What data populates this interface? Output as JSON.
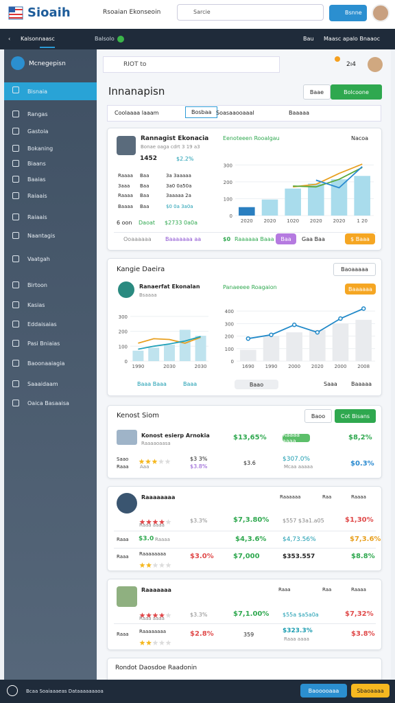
{
  "header": {
    "logo": "Sioaih",
    "tagline": "Rsoaian Ekonseoin",
    "search": "Sarcie",
    "button": "Bsnne"
  },
  "topbar": {
    "back": "Kalsonnaasc",
    "status": "Balsolo",
    "right": [
      "Bau",
      "Maasc apalo Bnaaoc"
    ]
  },
  "sidebar": {
    "title": "Mcnegepisn",
    "items": [
      "Bisnaia",
      "Rangas",
      "Gastoia",
      "Bokaning",
      "Biaans",
      "Baaias",
      "Raiaais",
      "Raiaais",
      "Naantagis",
      "Vaatgah",
      "Birtoon",
      "Kasias",
      "Eddaisaias",
      "Pasi Bniaias",
      "Baoonaaiagia",
      "Saaaidaam",
      "Oaica Basaaisa"
    ]
  },
  "main": {
    "search": "RIOT to",
    "count": "2ı4",
    "title": "Innanapisn",
    "buttons": [
      "Baae",
      "Bolcoone"
    ],
    "tabs": [
      "Coolaaaa laaam",
      "Bosbaa",
      "Soasaaooaaal",
      "Baaaaa"
    ]
  },
  "card1": {
    "name": "Rannagist Ekonacia",
    "sub": "Bonae oaga cdrt 3 19 a3",
    "stat_head": [
      "1452",
      "$2.2%"
    ],
    "rows": [
      [
        "Raaaa",
        "Baa",
        "3a 3aaaaa"
      ],
      [
        "3aaa",
        "Baa",
        "3a0 0a50a"
      ],
      [
        "Raaaa",
        "Baa",
        "3aaaaa 2a"
      ],
      [
        "Baaaa",
        "Baa",
        "$0 0a 3a0a"
      ]
    ],
    "total": [
      "6 oon",
      "Daoat",
      "$2733 0a0a"
    ],
    "chart_link": "Nacoa",
    "footer": [
      "Ooaaaaaa",
      "Baaaaaaa aa",
      "$0",
      "Raaaaaa Baaa",
      "Baa",
      "Gaa Baa",
      "$ Baaa"
    ]
  },
  "card2": {
    "title": "Kangie Daeira",
    "dropdown": "Baoaaaaa",
    "name": "Ranaerfat Ekonalan",
    "sub": "Bsaaaa",
    "pill": "Baaaaaa",
    "footer": [
      "Baaa Baaa",
      "Baaa",
      "Baao",
      "Saaa",
      "Baaaaa"
    ]
  },
  "card3": {
    "title": "Kenost Siom",
    "buttons": [
      "Baoo",
      "Cot Bisans"
    ],
    "name": "Konost esierp Arnokia",
    "sub": "Raaaaoaasa",
    "row1": [
      "$13,65%",
      "Raaaa aaaa",
      "$8,2%"
    ],
    "row2": [
      "Saao",
      "Raaa",
      "Aaa",
      "$3 3%",
      "$3.8%",
      "$3.6",
      "$307.0%",
      "Mcaa aaaaa",
      "$0.3%"
    ],
    "rating": 3
  },
  "card4": {
    "name": "Raaaaaaaa",
    "heads": [
      "Raaaaaa",
      "Raa",
      "Raaaa"
    ],
    "rating1": 4,
    "row1": [
      "Raaa aaaa",
      "$3.3%",
      "$7,3.80%",
      "$557 $3a1.a05",
      "$1,30%"
    ],
    "row2": [
      "Raaa",
      "$3.0",
      "Raaaa",
      "$4,3.6%",
      "$4,73.56%",
      "$7,3.6%"
    ],
    "row3": [
      "Raaa",
      "Raaaaaaaa",
      "$3.0%",
      "$7,000",
      "$353.557",
      "$8.8%"
    ],
    "rating3": 2
  },
  "card5": {
    "name": "Raaaaaaa",
    "heads": [
      "Raaa",
      "Raa",
      "Raaaa"
    ],
    "rating1": 4,
    "row1": [
      "Raaa aaaa",
      "$3.3%",
      "$7,1.00%",
      "$55a $a5a0a",
      "$7,32%"
    ],
    "row2": [
      "Raaa",
      "Raaaaaaaa",
      "$2.8%",
      "359",
      "$323.3%",
      "Raaa aaaa",
      "$3.8%"
    ],
    "rating2": 2
  },
  "card6": {
    "title": "Rondot Daosdoe Raadonin"
  },
  "footer": {
    "text": "Bcaa Soaiaaaeas Dataaaaaaaoa",
    "buttons": [
      "Baooooaaa",
      "Sbaoaaaa"
    ]
  },
  "chart_data": [
    {
      "type": "bar-line",
      "title": "Eenoteeen Rooalgau",
      "categories": [
        "2020",
        "2020",
        "1020",
        "2020",
        "2020",
        "1 20"
      ],
      "ylim": [
        0,
        350
      ],
      "yticks": [
        0,
        100,
        200,
        300
      ],
      "grid": true,
      "series": [
        {
          "kind": "bar",
          "color": "#a9dcec",
          "values": [
            50,
            95,
            160,
            190,
            215,
            235
          ]
        },
        {
          "kind": "line",
          "color": "#e8a020",
          "values": [
            null,
            null,
            170,
            185,
            250,
            305
          ]
        },
        {
          "kind": "line",
          "color": "#5aa83a",
          "values": [
            null,
            null,
            175,
            170,
            215,
            285
          ]
        },
        {
          "kind": "line",
          "color": "#2a8ad0",
          "values": [
            null,
            null,
            null,
            210,
            165,
            290
          ]
        }
      ]
    },
    {
      "type": "bar-line",
      "categories": [
        "1990",
        null,
        "2030",
        null,
        "2030"
      ],
      "ylim": [
        0,
        350
      ],
      "yticks": [
        0,
        100,
        200,
        300
      ],
      "grid": true,
      "series": [
        {
          "kind": "bar",
          "color": "#bfe3ee",
          "values": [
            70,
            90,
            110,
            210,
            170
          ]
        },
        {
          "kind": "line",
          "color": "#e8a020",
          "values": [
            120,
            150,
            145,
            120,
            160
          ]
        },
        {
          "kind": "line",
          "color": "#1fa0b8",
          "values": [
            80,
            100,
            115,
            135,
            165
          ]
        }
      ]
    },
    {
      "type": "bar-line",
      "title": "Panaeeee Roagaion",
      "categories": [
        "1690",
        "1990",
        "2000",
        "2020",
        "2000",
        "2008"
      ],
      "ylim": [
        0,
        450
      ],
      "yticks": [
        0,
        100,
        200,
        300,
        400
      ],
      "grid": true,
      "series": [
        {
          "kind": "bar",
          "color": "#e9ebee",
          "values": [
            90,
            200,
            230,
            250,
            300,
            330
          ]
        },
        {
          "kind": "line",
          "color": "#1f88c8",
          "values": [
            180,
            210,
            290,
            230,
            340,
            420
          ]
        }
      ]
    }
  ]
}
